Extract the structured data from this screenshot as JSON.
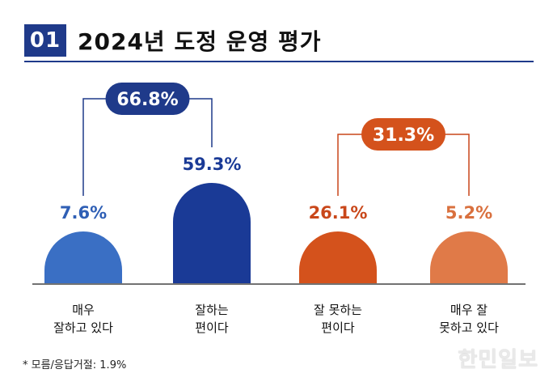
{
  "header": {
    "number": "01",
    "title": "2024년 도정 운영 평가"
  },
  "chart_data": {
    "type": "bar",
    "categories": [
      "매우\n잘하고 있다",
      "잘하는\n편이다",
      "잘 못하는\n편이다",
      "매우 잘\n못하고 있다"
    ],
    "values": [
      7.6,
      59.3,
      26.1,
      5.2
    ],
    "value_labels": [
      "7.6%",
      "59.3%",
      "26.1%",
      "5.2%"
    ],
    "bar_colors": [
      "#3a6fc4",
      "#1a3a96",
      "#d4521c",
      "#e07a48"
    ],
    "label_colors": [
      "#2f5fb5",
      "#1a3a96",
      "#c9471a",
      "#d9703e"
    ],
    "groups": [
      {
        "label": "66.8%",
        "members": [
          0,
          1
        ],
        "fill": "#1f3a8a",
        "stroke": "#1f3a8a"
      },
      {
        "label": "31.3%",
        "members": [
          2,
          3
        ],
        "fill": "#d4521c",
        "stroke": "#c9471a"
      }
    ],
    "ylim": [
      0,
      60
    ]
  },
  "footnote": "* 모름/응답거절: 1.9%",
  "watermark": "한민일보"
}
